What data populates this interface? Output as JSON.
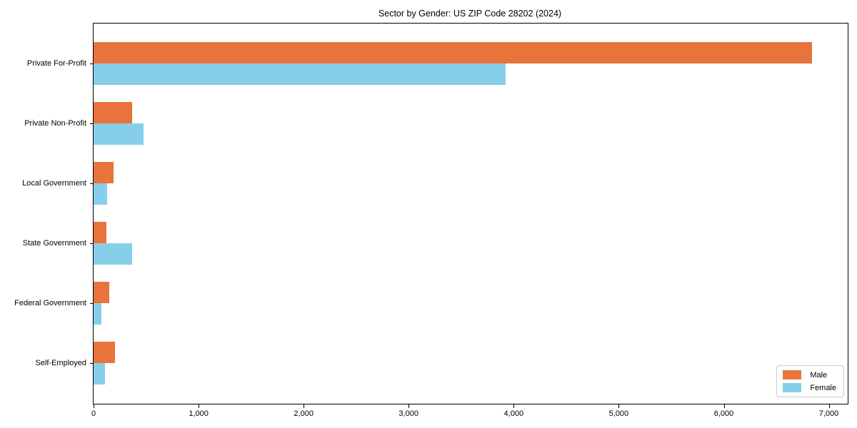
{
  "chart_data": {
    "type": "bar",
    "orientation": "horizontal",
    "title": "Sector by Gender: US ZIP Code 28202 (2024)",
    "categories": [
      "Private For-Profit",
      "Private Non-Profit",
      "Local Government",
      "State Government",
      "Federal Government",
      "Self-Employed"
    ],
    "series": [
      {
        "name": "Male",
        "color": "#E8743B",
        "values": [
          6840,
          370,
          190,
          120,
          150,
          205
        ]
      },
      {
        "name": "Female",
        "color": "#87CEEB",
        "values": [
          3920,
          475,
          130,
          370,
          75,
          110
        ]
      }
    ],
    "xlabel": "",
    "ylabel": "",
    "xlim": [
      0,
      7180
    ],
    "xticks": [
      {
        "value": 0,
        "label": "0"
      },
      {
        "value": 1000,
        "label": "1,000"
      },
      {
        "value": 2000,
        "label": "2,000"
      },
      {
        "value": 3000,
        "label": "3,000"
      },
      {
        "value": 4000,
        "label": "4,000"
      },
      {
        "value": 5000,
        "label": "5,000"
      },
      {
        "value": 6000,
        "label": "6,000"
      },
      {
        "value": 7000,
        "label": "7,000"
      }
    ],
    "grid": false,
    "legend_position": "lower right",
    "axis_color": "#000000",
    "background_color": "#ffffff"
  }
}
